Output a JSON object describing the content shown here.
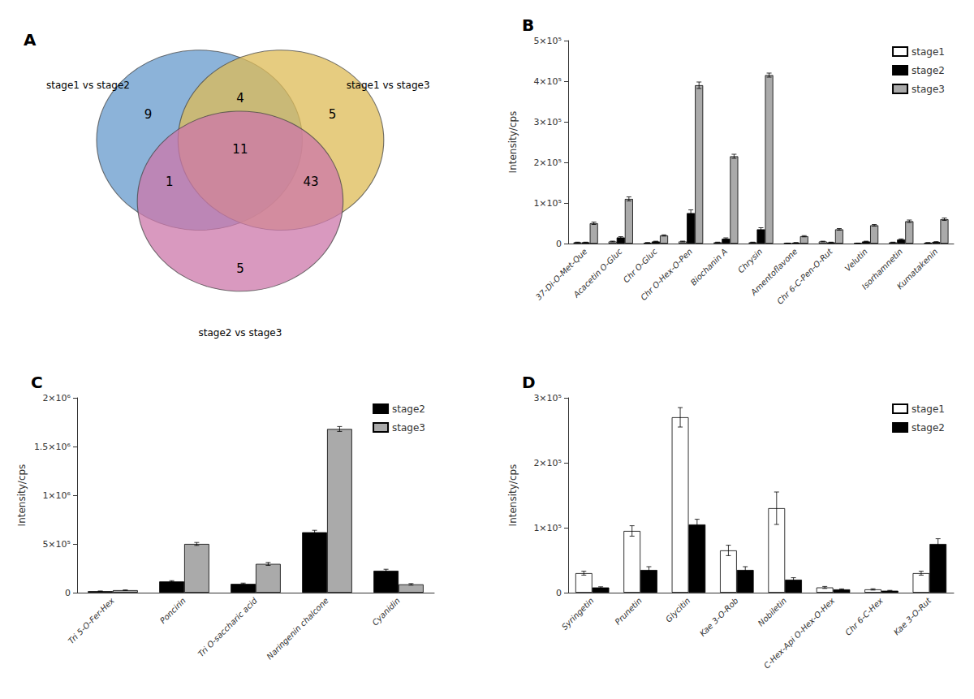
{
  "chart_data": [
    {
      "type": "venn",
      "title": "A",
      "sets": [
        {
          "name": "stage1 vs stage2",
          "color": "#6699CC"
        },
        {
          "name": "stage1 vs stage3",
          "color": "#DDBB55"
        },
        {
          "name": "stage2 vs stage3",
          "color": "#CC77AA"
        }
      ],
      "regions": [
        {
          "sets": [
            "stage1 vs stage2"
          ],
          "value": 9
        },
        {
          "sets": [
            "stage1 vs stage3"
          ],
          "value": 5
        },
        {
          "sets": [
            "stage2 vs stage3"
          ],
          "value": 5
        },
        {
          "sets": [
            "stage1 vs stage2",
            "stage1 vs stage3"
          ],
          "value": 4
        },
        {
          "sets": [
            "stage1 vs stage2",
            "stage2 vs stage3"
          ],
          "value": 1
        },
        {
          "sets": [
            "stage1 vs stage3",
            "stage2 vs stage3"
          ],
          "value": 43
        },
        {
          "sets": [
            "stage1 vs stage2",
            "stage1 vs stage3",
            "stage2 vs stage3"
          ],
          "value": 11
        }
      ]
    },
    {
      "type": "bar",
      "title": "B",
      "ylabel": "Intensity/cps",
      "categories": [
        "37-Di-O-Met-Que",
        "Acacetin O-Gluc",
        "Chr O-Gluc",
        "Chr O-Hex-O-Pen",
        "Biochanin A",
        "Chrysin",
        "Amentoflavone",
        "Chr 6-C-Pen-O-Rut",
        "Velutin",
        "Isorhamnetin",
        "Kumatakenin"
      ],
      "series": [
        {
          "name": "stage1",
          "color": "#FFFFFF",
          "values": [
            3000,
            5000,
            2000,
            5000,
            3000,
            3000,
            1000,
            5000,
            1000,
            3000,
            2000
          ],
          "errors": [
            500,
            1000,
            300,
            1000,
            500,
            500,
            200,
            800,
            200,
            500,
            300
          ]
        },
        {
          "name": "stage2",
          "color": "#000000",
          "values": [
            3000,
            15000,
            5000,
            75000,
            12000,
            35000,
            2000,
            3000,
            5000,
            10000,
            4000
          ],
          "errors": [
            500,
            2000,
            800,
            8000,
            2000,
            4000,
            300,
            500,
            800,
            1500,
            600
          ]
        },
        {
          "name": "stage3",
          "color": "#AAAAAA",
          "values": [
            50000,
            110000,
            20000,
            390000,
            215000,
            415000,
            18000,
            35000,
            45000,
            55000,
            60000
          ],
          "errors": [
            3000,
            5000,
            1500,
            8000,
            5000,
            5000,
            1500,
            2000,
            2000,
            3000,
            3000
          ]
        }
      ],
      "ylim": [
        0,
        500000
      ],
      "yticks": [
        0,
        {
          "value": 100000,
          "label": "1×10⁵"
        },
        {
          "value": 200000,
          "label": "2×10⁵"
        },
        {
          "value": 300000,
          "label": "3×10⁵"
        },
        {
          "value": 400000,
          "label": "4×10⁵"
        },
        {
          "value": 500000,
          "label": "5×10⁵"
        }
      ],
      "legend": "upper right",
      "grid": false
    },
    {
      "type": "bar",
      "title": "C",
      "ylabel": "Intensity/cps",
      "categories": [
        "Tri 5-O-Fer-Hex",
        "Poncirin",
        "Tri O-saccharic acid",
        "Naringenin chalcone",
        "Cyanidin"
      ],
      "series": [
        {
          "name": "stage2",
          "color": "#000000",
          "values": [
            15000,
            115000,
            90000,
            620000,
            225000
          ],
          "errors": [
            2000,
            8000,
            8000,
            20000,
            15000
          ]
        },
        {
          "name": "stage3",
          "color": "#AAAAAA",
          "values": [
            25000,
            500000,
            295000,
            1680000,
            85000
          ],
          "errors": [
            2000,
            15000,
            15000,
            25000,
            8000
          ]
        }
      ],
      "ylim": [
        0,
        2000000
      ],
      "yticks": [
        0,
        {
          "value": 500000,
          "label": "5×10⁵"
        },
        {
          "value": 1000000,
          "label": "1×10⁶"
        },
        {
          "value": 1500000,
          "label": "1.5×10⁶"
        },
        {
          "value": 2000000,
          "label": "2×10⁶"
        }
      ],
      "legend": "upper right",
      "grid": false
    },
    {
      "type": "bar",
      "title": "D",
      "ylabel": "Intensity/cps",
      "categories": [
        "Syringetin",
        "Prunetin",
        "Glycitin",
        "Kae 3-O-Rob",
        "Nobiletin",
        "C-Hex-Api O-Hex-O-Hex",
        "Chr 6-C-Hex",
        "Kae 3-O-Rut"
      ],
      "series": [
        {
          "name": "stage1",
          "color": "#FFFFFF",
          "values": [
            30000,
            95000,
            270000,
            65000,
            130000,
            8000,
            5000,
            30000
          ],
          "errors": [
            3000,
            8000,
            15000,
            8000,
            25000,
            1500,
            1000,
            3000
          ]
        },
        {
          "name": "stage2",
          "color": "#000000",
          "values": [
            8000,
            35000,
            105000,
            35000,
            20000,
            5000,
            3000,
            75000
          ],
          "errors": [
            1000,
            5000,
            8000,
            5000,
            3000,
            800,
            500,
            8000
          ]
        }
      ],
      "ylim": [
        0,
        300000
      ],
      "yticks": [
        0,
        {
          "value": 100000,
          "label": "1×10⁵"
        },
        {
          "value": 200000,
          "label": "2×10⁵"
        },
        {
          "value": 300000,
          "label": "3×10⁵"
        }
      ],
      "legend": "upper right",
      "grid": false
    }
  ]
}
